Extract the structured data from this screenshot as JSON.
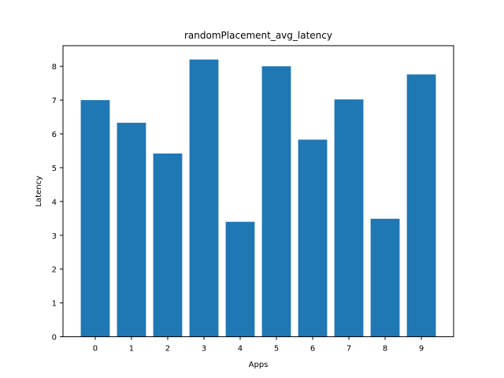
{
  "chart_data": {
    "type": "bar",
    "title": "randomPlacement_avg_latency",
    "xlabel": "Apps",
    "ylabel": "Latency",
    "categories": [
      "0",
      "1",
      "2",
      "3",
      "4",
      "5",
      "6",
      "7",
      "8",
      "9"
    ],
    "values": [
      7.0,
      6.33,
      5.42,
      8.2,
      3.4,
      8.0,
      5.83,
      7.02,
      3.49,
      7.76
    ],
    "ylim": [
      0,
      8.61
    ],
    "yticks": [
      "0",
      "1",
      "2",
      "3",
      "4",
      "5",
      "6",
      "7",
      "8"
    ],
    "bar_color": "#1f77b4",
    "grid": false,
    "legend": "none"
  }
}
